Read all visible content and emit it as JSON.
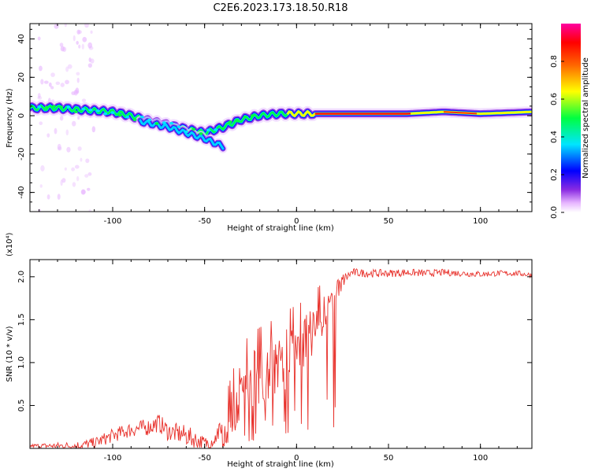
{
  "title": "C2E6.2023.173.18.50.R18",
  "chart_data": [
    {
      "type": "heatmap",
      "xlabel": "Height of straight line (km)",
      "ylabel": "Frequency (Hz)",
      "xlim": [
        -145,
        128
      ],
      "ylim": [
        -50,
        48
      ],
      "xticks": [
        -100,
        -50,
        0,
        50,
        100
      ],
      "yticks": [
        -40,
        -20,
        0,
        20,
        40
      ],
      "colorbar": {
        "label": "Normalized spectral amplitude",
        "range": [
          0,
          1
        ],
        "ticks": [
          0.0,
          0.2,
          0.4,
          0.6,
          0.8
        ],
        "tick_labels": [
          "0.0",
          "0.2",
          "0.4",
          "0.6",
          "0.8"
        ],
        "colors": [
          "#ffffff",
          "#e7b6ff",
          "#8a2be2",
          "#0000ff",
          "#00e5ff",
          "#00ff40",
          "#ffff00",
          "#ff6600",
          "#ff0000",
          "#ff00a0"
        ]
      },
      "ridge": {
        "x": [
          -145,
          -130,
          -115,
          -100,
          -90,
          -80,
          -70,
          -60,
          -50,
          -40,
          -35,
          -30,
          -25,
          -20,
          -10,
          0,
          10,
          20,
          40,
          60,
          80,
          100,
          128
        ],
        "y": [
          4,
          4,
          3,
          2,
          0,
          -3,
          -5,
          -7,
          -9,
          -6,
          -4,
          -2,
          -1,
          0,
          1,
          1,
          1,
          1,
          1,
          1,
          2,
          1,
          2
        ]
      },
      "secondary_ridge": {
        "x": [
          -85,
          -70,
          -60,
          -50,
          -40
        ],
        "y": [
          -3,
          -6,
          -9,
          -12,
          -16
        ]
      }
    },
    {
      "type": "line",
      "xlabel": "Height of straight line (km)",
      "ylabel": "SNR (10 * v/v)",
      "yscale_label": "(x10⁴)",
      "xlim": [
        -145,
        128
      ],
      "ylim": [
        0,
        2.2
      ],
      "xticks": [
        -100,
        -50,
        0,
        50,
        100
      ],
      "yticks": [
        0.5,
        1.0,
        1.5,
        2.0
      ],
      "ytick_labels": [
        "0.5",
        "1.0",
        "1.5",
        "2.0"
      ],
      "color": "#e8322c",
      "series": [
        {
          "name": "SNR",
          "envelope_x": [
            -145,
            -130,
            -120,
            -110,
            -100,
            -90,
            -80,
            -75,
            -70,
            -60,
            -55,
            -50,
            -45,
            -40,
            -35,
            -30,
            -25,
            -20,
            -15,
            -10,
            -5,
            0,
            5,
            10,
            15,
            20,
            25,
            30,
            40,
            50,
            60,
            70,
            80,
            90,
            100,
            110,
            120,
            128
          ],
          "envelope_y": [
            0.03,
            0.03,
            0.03,
            0.06,
            0.15,
            0.22,
            0.25,
            0.3,
            0.2,
            0.15,
            0.1,
            0.05,
            0.1,
            0.2,
            0.4,
            0.7,
            0.8,
            0.85,
            0.9,
            1.0,
            1.05,
            1.15,
            1.25,
            1.4,
            1.55,
            1.75,
            1.95,
            2.05,
            2.04,
            2.04,
            2.05,
            2.04,
            2.05,
            2.04,
            2.03,
            2.04,
            2.04,
            2.02
          ],
          "noise_x": [
            -145,
            -100,
            -60,
            -45,
            -35,
            -20,
            -5,
            15,
            28,
            128
          ],
          "noise_amp": [
            0.02,
            0.08,
            0.12,
            0.08,
            0.3,
            0.35,
            0.35,
            0.25,
            0.05,
            0.03
          ]
        }
      ]
    }
  ]
}
